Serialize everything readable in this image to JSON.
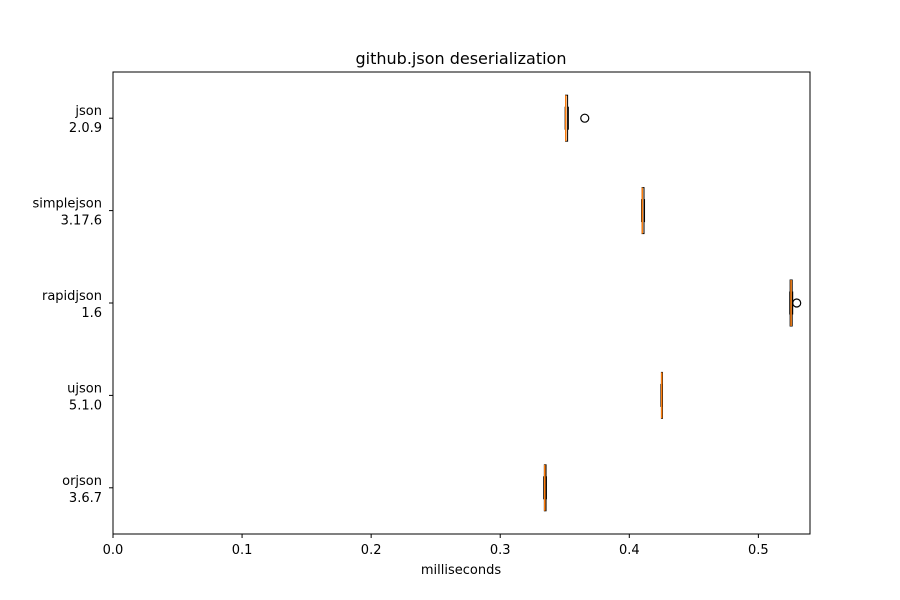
{
  "chart_data": {
    "type": "boxplot",
    "orientation": "horizontal",
    "title": "github.json deserialization",
    "xlabel": "milliseconds",
    "ylabel": "",
    "xlim": [
      0.0,
      0.54
    ],
    "xticks": [
      0.0,
      0.1,
      0.2,
      0.3,
      0.4,
      0.5
    ],
    "xtick_labels": [
      "0.0",
      "0.1",
      "0.2",
      "0.3",
      "0.4",
      "0.5"
    ],
    "grid": false,
    "categories": [
      {
        "name": "json",
        "version": "2.0.9"
      },
      {
        "name": "simplejson",
        "version": "3.17.6"
      },
      {
        "name": "rapidjson",
        "version": "1.6"
      },
      {
        "name": "ujson",
        "version": "5.1.0"
      },
      {
        "name": "orjson",
        "version": "3.6.7"
      }
    ],
    "boxes": [
      {
        "whisker_low": 0.3503,
        "q1": 0.3506,
        "median": 0.3508,
        "q3": 0.3522,
        "whisker_high": 0.3528,
        "outliers": [
          0.3655
        ]
      },
      {
        "whisker_low": 0.4095,
        "q1": 0.4099,
        "median": 0.4101,
        "q3": 0.4114,
        "whisker_high": 0.4118,
        "outliers": []
      },
      {
        "whisker_low": 0.5243,
        "q1": 0.5246,
        "median": 0.5253,
        "q3": 0.5262,
        "whisker_high": 0.5266,
        "outliers": [
          0.5297
        ]
      },
      {
        "whisker_low": 0.4245,
        "q1": 0.4249,
        "median": 0.4251,
        "q3": 0.4254,
        "whisker_high": 0.4257,
        "outliers": []
      },
      {
        "whisker_low": 0.3337,
        "q1": 0.3342,
        "median": 0.3345,
        "q3": 0.3355,
        "whisker_high": 0.3358,
        "outliers": []
      }
    ],
    "colors": {
      "box": "#000000",
      "median": "#ff7f0e",
      "outlier": "#000000"
    }
  }
}
